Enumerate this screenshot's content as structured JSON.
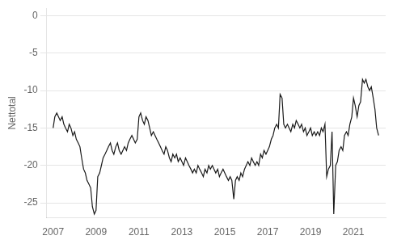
{
  "chart_data": {
    "type": "line",
    "ylabel": "Nettotal",
    "color": "#1a1a1a",
    "ylim": [
      -27,
      1
    ],
    "yticks": [
      0,
      -5,
      -10,
      -15,
      -20,
      -25
    ],
    "xlim": [
      2006.7,
      2022.5
    ],
    "xticks": [
      2007,
      2009,
      2011,
      2013,
      2015,
      2017,
      2019,
      2021
    ],
    "grid": "y",
    "x": [
      2007.0,
      2007.08,
      2007.17,
      2007.25,
      2007.33,
      2007.42,
      2007.5,
      2007.58,
      2007.67,
      2007.75,
      2007.83,
      2007.92,
      2008.0,
      2008.08,
      2008.17,
      2008.25,
      2008.33,
      2008.42,
      2008.5,
      2008.58,
      2008.67,
      2008.75,
      2008.83,
      2008.92,
      2009.0,
      2009.08,
      2009.17,
      2009.25,
      2009.33,
      2009.42,
      2009.5,
      2009.58,
      2009.67,
      2009.75,
      2009.83,
      2009.92,
      2010.0,
      2010.08,
      2010.17,
      2010.25,
      2010.33,
      2010.42,
      2010.5,
      2010.58,
      2010.67,
      2010.75,
      2010.83,
      2010.92,
      2011.0,
      2011.08,
      2011.17,
      2011.25,
      2011.33,
      2011.42,
      2011.5,
      2011.58,
      2011.67,
      2011.75,
      2011.83,
      2011.92,
      2012.0,
      2012.08,
      2012.17,
      2012.25,
      2012.33,
      2012.42,
      2012.5,
      2012.58,
      2012.67,
      2012.75,
      2012.83,
      2012.92,
      2013.0,
      2013.08,
      2013.17,
      2013.25,
      2013.33,
      2013.42,
      2013.5,
      2013.58,
      2013.67,
      2013.75,
      2013.83,
      2013.92,
      2014.0,
      2014.08,
      2014.17,
      2014.25,
      2014.33,
      2014.42,
      2014.5,
      2014.58,
      2014.67,
      2014.75,
      2014.83,
      2014.92,
      2015.0,
      2015.08,
      2015.17,
      2015.25,
      2015.33,
      2015.42,
      2015.5,
      2015.58,
      2015.67,
      2015.75,
      2015.83,
      2015.92,
      2016.0,
      2016.08,
      2016.17,
      2016.25,
      2016.33,
      2016.42,
      2016.5,
      2016.58,
      2016.67,
      2016.75,
      2016.83,
      2016.92,
      2017.0,
      2017.08,
      2017.17,
      2017.25,
      2017.33,
      2017.42,
      2017.5,
      2017.58,
      2017.67,
      2017.75,
      2017.83,
      2017.92,
      2018.0,
      2018.08,
      2018.17,
      2018.25,
      2018.33,
      2018.42,
      2018.5,
      2018.58,
      2018.67,
      2018.75,
      2018.83,
      2018.92,
      2019.0,
      2019.08,
      2019.17,
      2019.25,
      2019.33,
      2019.42,
      2019.5,
      2019.58,
      2019.67,
      2019.75,
      2019.83,
      2019.92,
      2020.0,
      2020.08,
      2020.17,
      2020.25,
      2020.33,
      2020.42,
      2020.5,
      2020.58,
      2020.67,
      2020.75,
      2020.83,
      2020.92,
      2021.0,
      2021.08,
      2021.17,
      2021.25,
      2021.33,
      2021.42,
      2021.5,
      2021.58,
      2021.67,
      2021.75,
      2021.83,
      2021.92,
      2022.0,
      2022.08,
      2022.17
    ],
    "values": [
      -15.0,
      -13.5,
      -13.0,
      -13.5,
      -14.0,
      -13.5,
      -14.5,
      -15.0,
      -15.5,
      -14.5,
      -15.0,
      -16.0,
      -15.5,
      -16.5,
      -17.0,
      -17.5,
      -19.0,
      -20.5,
      -21.0,
      -22.0,
      -22.5,
      -23.0,
      -25.5,
      -26.5,
      -26.0,
      -21.5,
      -21.0,
      -20.0,
      -19.0,
      -18.5,
      -18.0,
      -17.5,
      -17.0,
      -18.0,
      -18.5,
      -17.5,
      -17.0,
      -18.0,
      -18.5,
      -18.0,
      -17.5,
      -18.0,
      -17.0,
      -16.5,
      -16.0,
      -16.5,
      -17.0,
      -16.5,
      -13.5,
      -13.0,
      -14.0,
      -14.5,
      -13.5,
      -14.0,
      -15.0,
      -16.0,
      -15.5,
      -16.0,
      -16.5,
      -17.0,
      -17.5,
      -18.0,
      -18.5,
      -17.5,
      -18.0,
      -19.0,
      -19.5,
      -18.5,
      -19.0,
      -18.5,
      -19.5,
      -19.0,
      -19.5,
      -20.0,
      -19.0,
      -19.5,
      -20.0,
      -20.5,
      -21.0,
      -20.5,
      -21.0,
      -20.0,
      -20.5,
      -21.0,
      -21.5,
      -20.5,
      -21.0,
      -20.0,
      -20.5,
      -20.0,
      -20.5,
      -21.0,
      -20.5,
      -21.5,
      -21.0,
      -20.5,
      -21.0,
      -21.5,
      -22.0,
      -21.5,
      -22.0,
      -24.5,
      -22.0,
      -21.5,
      -22.0,
      -21.0,
      -21.5,
      -20.5,
      -20.0,
      -19.5,
      -20.0,
      -19.0,
      -19.5,
      -20.0,
      -19.5,
      -20.0,
      -18.5,
      -19.0,
      -18.0,
      -18.5,
      -18.0,
      -17.5,
      -16.5,
      -16.0,
      -15.0,
      -14.5,
      -15.0,
      -10.5,
      -11.0,
      -14.5,
      -15.0,
      -14.5,
      -15.0,
      -15.5,
      -14.5,
      -15.0,
      -14.0,
      -14.5,
      -15.0,
      -14.5,
      -15.5,
      -15.0,
      -16.0,
      -15.5,
      -15.0,
      -16.0,
      -15.5,
      -16.0,
      -15.5,
      -16.0,
      -15.0,
      -15.5,
      -14.5,
      -21.5,
      -20.5,
      -20.0,
      -15.5,
      -26.5,
      -20.0,
      -19.5,
      -18.0,
      -17.5,
      -18.0,
      -16.0,
      -15.5,
      -16.0,
      -14.5,
      -13.5,
      -11.0,
      -12.0,
      -13.5,
      -12.0,
      -11.5,
      -8.5,
      -9.0,
      -8.5,
      -9.5,
      -10.0,
      -9.5,
      -11.0,
      -12.5,
      -15.0,
      -16.0
    ]
  }
}
